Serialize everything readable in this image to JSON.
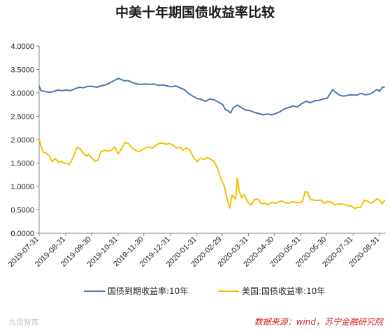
{
  "chart_data": {
    "type": "line",
    "title": "中美十年期国债收益率比较",
    "xlabel": "",
    "ylabel": "",
    "ylim": [
      0,
      4
    ],
    "yticks": [
      "0.0000",
      "0.5000",
      "1.0000",
      "1.5000",
      "2.0000",
      "2.5000",
      "3.0000",
      "3.5000",
      "4.0000"
    ],
    "x_tick_labels": [
      "2019-07-31",
      "2019-08-31",
      "2019-09-30",
      "2019-10-31",
      "2019-11-30",
      "2019-12-31",
      "2020-01-31",
      "2020-02-29",
      "2020-03-31",
      "2020-04-30",
      "2020-05-31",
      "2020-06-30",
      "2020-07-31",
      "2020-08-31"
    ],
    "x_range": [
      "2019-07-31",
      "2020-09-07"
    ],
    "grid": false,
    "legend_position": "bottom",
    "series": [
      {
        "name": "国债到期收益率:10年",
        "color": "#4a76ad",
        "points": [
          [
            "2019-07-31",
            3.15
          ],
          [
            "2019-08-02",
            3.05
          ],
          [
            "2019-08-07",
            3.03
          ],
          [
            "2019-08-12",
            3.01
          ],
          [
            "2019-08-17",
            3.03
          ],
          [
            "2019-08-22",
            3.06
          ],
          [
            "2019-08-27",
            3.05
          ],
          [
            "2019-09-01",
            3.06
          ],
          [
            "2019-09-06",
            3.05
          ],
          [
            "2019-09-11",
            3.09
          ],
          [
            "2019-09-16",
            3.12
          ],
          [
            "2019-09-21",
            3.11
          ],
          [
            "2019-09-26",
            3.14
          ],
          [
            "2019-10-01",
            3.14
          ],
          [
            "2019-10-06",
            3.12
          ],
          [
            "2019-10-11",
            3.15
          ],
          [
            "2019-10-16",
            3.17
          ],
          [
            "2019-10-21",
            3.21
          ],
          [
            "2019-10-26",
            3.26
          ],
          [
            "2019-10-31",
            3.31
          ],
          [
            "2019-11-03",
            3.29
          ],
          [
            "2019-11-07",
            3.26
          ],
          [
            "2019-11-12",
            3.26
          ],
          [
            "2019-11-17",
            3.22
          ],
          [
            "2019-11-22",
            3.19
          ],
          [
            "2019-11-27",
            3.18
          ],
          [
            "2019-12-02",
            3.19
          ],
          [
            "2019-12-07",
            3.18
          ],
          [
            "2019-12-12",
            3.19
          ],
          [
            "2019-12-17",
            3.16
          ],
          [
            "2019-12-22",
            3.17
          ],
          [
            "2019-12-27",
            3.15
          ],
          [
            "2020-01-01",
            3.13
          ],
          [
            "2020-01-06",
            3.15
          ],
          [
            "2020-01-11",
            3.11
          ],
          [
            "2020-01-16",
            3.07
          ],
          [
            "2020-01-21",
            2.99
          ],
          [
            "2020-01-26",
            2.93
          ],
          [
            "2020-01-31",
            2.88
          ],
          [
            "2020-02-05",
            2.86
          ],
          [
            "2020-02-10",
            2.82
          ],
          [
            "2020-02-15",
            2.87
          ],
          [
            "2020-02-20",
            2.85
          ],
          [
            "2020-02-25",
            2.8
          ],
          [
            "2020-03-01",
            2.75
          ],
          [
            "2020-03-04",
            2.64
          ],
          [
            "2020-03-07",
            2.62
          ],
          [
            "2020-03-10",
            2.57
          ],
          [
            "2020-03-13",
            2.68
          ],
          [
            "2020-03-18",
            2.74
          ],
          [
            "2020-03-23",
            2.68
          ],
          [
            "2020-03-28",
            2.63
          ],
          [
            "2020-04-02",
            2.62
          ],
          [
            "2020-04-07",
            2.58
          ],
          [
            "2020-04-12",
            2.56
          ],
          [
            "2020-04-17",
            2.53
          ],
          [
            "2020-04-22",
            2.55
          ],
          [
            "2020-04-27",
            2.53
          ],
          [
            "2020-05-02",
            2.56
          ],
          [
            "2020-05-07",
            2.6
          ],
          [
            "2020-05-12",
            2.66
          ],
          [
            "2020-05-17",
            2.69
          ],
          [
            "2020-05-22",
            2.72
          ],
          [
            "2020-05-27",
            2.7
          ],
          [
            "2020-06-01",
            2.77
          ],
          [
            "2020-06-06",
            2.82
          ],
          [
            "2020-06-11",
            2.79
          ],
          [
            "2020-06-16",
            2.83
          ],
          [
            "2020-06-21",
            2.84
          ],
          [
            "2020-06-26",
            2.87
          ],
          [
            "2020-07-01",
            2.89
          ],
          [
            "2020-07-04",
            2.98
          ],
          [
            "2020-07-07",
            3.07
          ],
          [
            "2020-07-10",
            3.02
          ],
          [
            "2020-07-15",
            2.95
          ],
          [
            "2020-07-20",
            2.93
          ],
          [
            "2020-07-25",
            2.95
          ],
          [
            "2020-07-30",
            2.96
          ],
          [
            "2020-08-04",
            2.95
          ],
          [
            "2020-08-09",
            2.99
          ],
          [
            "2020-08-14",
            2.96
          ],
          [
            "2020-08-19",
            2.97
          ],
          [
            "2020-08-24",
            3.02
          ],
          [
            "2020-08-27",
            3.07
          ],
          [
            "2020-08-31",
            3.04
          ],
          [
            "2020-09-03",
            3.12
          ],
          [
            "2020-09-06",
            3.13
          ]
        ]
      },
      {
        "name": "美国:国债收益率:10年",
        "color": "#f2c000",
        "points": [
          [
            "2019-07-31",
            2.02
          ],
          [
            "2019-08-02",
            1.86
          ],
          [
            "2019-08-05",
            1.73
          ],
          [
            "2019-08-08",
            1.72
          ],
          [
            "2019-08-12",
            1.65
          ],
          [
            "2019-08-15",
            1.53
          ],
          [
            "2019-08-19",
            1.6
          ],
          [
            "2019-08-22",
            1.52
          ],
          [
            "2019-08-26",
            1.54
          ],
          [
            "2019-08-29",
            1.5
          ],
          [
            "2019-09-01",
            1.49
          ],
          [
            "2019-09-04",
            1.47
          ],
          [
            "2019-09-07",
            1.56
          ],
          [
            "2019-09-11",
            1.74
          ],
          [
            "2019-09-14",
            1.84
          ],
          [
            "2019-09-17",
            1.8
          ],
          [
            "2019-09-20",
            1.72
          ],
          [
            "2019-09-24",
            1.65
          ],
          [
            "2019-09-27",
            1.68
          ],
          [
            "2019-10-01",
            1.6
          ],
          [
            "2019-10-04",
            1.54
          ],
          [
            "2019-10-08",
            1.57
          ],
          [
            "2019-10-11",
            1.75
          ],
          [
            "2019-10-15",
            1.77
          ],
          [
            "2019-10-19",
            1.76
          ],
          [
            "2019-10-23",
            1.77
          ],
          [
            "2019-10-27",
            1.84
          ],
          [
            "2019-10-31",
            1.7
          ],
          [
            "2019-11-04",
            1.8
          ],
          [
            "2019-11-08",
            1.94
          ],
          [
            "2019-11-12",
            1.92
          ],
          [
            "2019-11-16",
            1.83
          ],
          [
            "2019-11-20",
            1.77
          ],
          [
            "2019-11-24",
            1.75
          ],
          [
            "2019-11-28",
            1.78
          ],
          [
            "2019-12-02",
            1.83
          ],
          [
            "2019-12-06",
            1.84
          ],
          [
            "2019-12-10",
            1.82
          ],
          [
            "2019-12-14",
            1.88
          ],
          [
            "2019-12-18",
            1.92
          ],
          [
            "2019-12-22",
            1.93
          ],
          [
            "2019-12-26",
            1.9
          ],
          [
            "2019-12-30",
            1.92
          ],
          [
            "2020-01-03",
            1.88
          ],
          [
            "2020-01-07",
            1.82
          ],
          [
            "2020-01-11",
            1.84
          ],
          [
            "2020-01-15",
            1.78
          ],
          [
            "2020-01-19",
            1.83
          ],
          [
            "2020-01-23",
            1.76
          ],
          [
            "2020-01-27",
            1.62
          ],
          [
            "2020-01-31",
            1.53
          ],
          [
            "2020-02-04",
            1.6
          ],
          [
            "2020-02-08",
            1.58
          ],
          [
            "2020-02-12",
            1.62
          ],
          [
            "2020-02-16",
            1.58
          ],
          [
            "2020-02-20",
            1.53
          ],
          [
            "2020-02-24",
            1.38
          ],
          [
            "2020-02-28",
            1.15
          ],
          [
            "2020-03-03",
            1.0
          ],
          [
            "2020-03-06",
            0.73
          ],
          [
            "2020-03-09",
            0.54
          ],
          [
            "2020-03-12",
            0.82
          ],
          [
            "2020-03-16",
            0.73
          ],
          [
            "2020-03-18",
            1.18
          ],
          [
            "2020-03-20",
            0.92
          ],
          [
            "2020-03-23",
            0.76
          ],
          [
            "2020-03-26",
            0.83
          ],
          [
            "2020-03-30",
            0.67
          ],
          [
            "2020-04-03",
            0.6
          ],
          [
            "2020-04-07",
            0.72
          ],
          [
            "2020-04-11",
            0.73
          ],
          [
            "2020-04-15",
            0.63
          ],
          [
            "2020-04-19",
            0.64
          ],
          [
            "2020-04-23",
            0.61
          ],
          [
            "2020-04-27",
            0.66
          ],
          [
            "2020-05-01",
            0.64
          ],
          [
            "2020-05-05",
            0.67
          ],
          [
            "2020-05-09",
            0.69
          ],
          [
            "2020-05-13",
            0.65
          ],
          [
            "2020-05-17",
            0.64
          ],
          [
            "2020-05-21",
            0.67
          ],
          [
            "2020-05-25",
            0.66
          ],
          [
            "2020-05-29",
            0.65
          ],
          [
            "2020-06-02",
            0.68
          ],
          [
            "2020-06-05",
            0.89
          ],
          [
            "2020-06-08",
            0.87
          ],
          [
            "2020-06-11",
            0.72
          ],
          [
            "2020-06-15",
            0.71
          ],
          [
            "2020-06-19",
            0.7
          ],
          [
            "2020-06-23",
            0.71
          ],
          [
            "2020-06-27",
            0.64
          ],
          [
            "2020-07-01",
            0.68
          ],
          [
            "2020-07-05",
            0.67
          ],
          [
            "2020-07-09",
            0.61
          ],
          [
            "2020-07-13",
            0.62
          ],
          [
            "2020-07-17",
            0.63
          ],
          [
            "2020-07-21",
            0.61
          ],
          [
            "2020-07-25",
            0.59
          ],
          [
            "2020-07-29",
            0.58
          ],
          [
            "2020-08-02",
            0.53
          ],
          [
            "2020-08-05",
            0.55
          ],
          [
            "2020-08-09",
            0.56
          ],
          [
            "2020-08-13",
            0.71
          ],
          [
            "2020-08-17",
            0.68
          ],
          [
            "2020-08-21",
            0.64
          ],
          [
            "2020-08-25",
            0.69
          ],
          [
            "2020-08-28",
            0.74
          ],
          [
            "2020-08-31",
            0.7
          ],
          [
            "2020-09-03",
            0.63
          ],
          [
            "2020-09-06",
            0.72
          ]
        ]
      }
    ]
  },
  "footer": {
    "source": "数据来源：wind，苏宁金融研究院",
    "watermark": "九盘智库"
  }
}
